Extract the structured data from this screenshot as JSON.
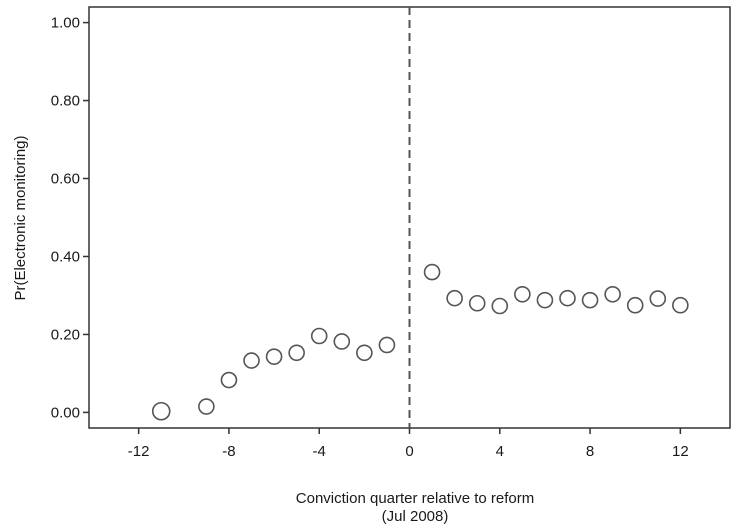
{
  "chart_data": {
    "type": "scatter",
    "title": "",
    "xlabel": "Conviction quarter relative to reform",
    "xlabel_sub": "(Jul 2008)",
    "ylabel": "Pr(Electronic monitoring)",
    "xlim": [
      -14.2,
      14.2
    ],
    "ylim": [
      -0.04,
      1.04
    ],
    "x_ticks": [
      -12,
      -8,
      -4,
      0,
      4,
      8,
      12
    ],
    "x_tick_labels": [
      "-12",
      "-8",
      "-4",
      "0",
      "4",
      "8",
      "12"
    ],
    "y_ticks": [
      0,
      0.2,
      0.4,
      0.6,
      0.8,
      1.0
    ],
    "y_tick_labels": [
      "0.00",
      "0.20",
      "0.40",
      "0.60",
      "0.80",
      "1.00"
    ],
    "grid": false,
    "reference_line": {
      "x": 0,
      "style": "dashed"
    },
    "marker": "hollow-circle",
    "series": [
      {
        "points": [
          {
            "x": -11,
            "y": 0.003
          },
          {
            "x": -9,
            "y": 0.015
          },
          {
            "x": -8,
            "y": 0.083
          },
          {
            "x": -7,
            "y": 0.133
          },
          {
            "x": -6,
            "y": 0.143
          },
          {
            "x": -5,
            "y": 0.153
          },
          {
            "x": -4,
            "y": 0.196
          },
          {
            "x": -3,
            "y": 0.182
          },
          {
            "x": -2,
            "y": 0.153
          },
          {
            "x": -1,
            "y": 0.173
          },
          {
            "x": 1,
            "y": 0.36
          },
          {
            "x": 2,
            "y": 0.293
          },
          {
            "x": 3,
            "y": 0.28
          },
          {
            "x": 4,
            "y": 0.273
          },
          {
            "x": 5,
            "y": 0.303
          },
          {
            "x": 6,
            "y": 0.288
          },
          {
            "x": 7,
            "y": 0.293
          },
          {
            "x": 8,
            "y": 0.288
          },
          {
            "x": 9,
            "y": 0.303
          },
          {
            "x": 10,
            "y": 0.275
          },
          {
            "x": 11,
            "y": 0.292
          },
          {
            "x": 12,
            "y": 0.275
          }
        ]
      }
    ]
  }
}
